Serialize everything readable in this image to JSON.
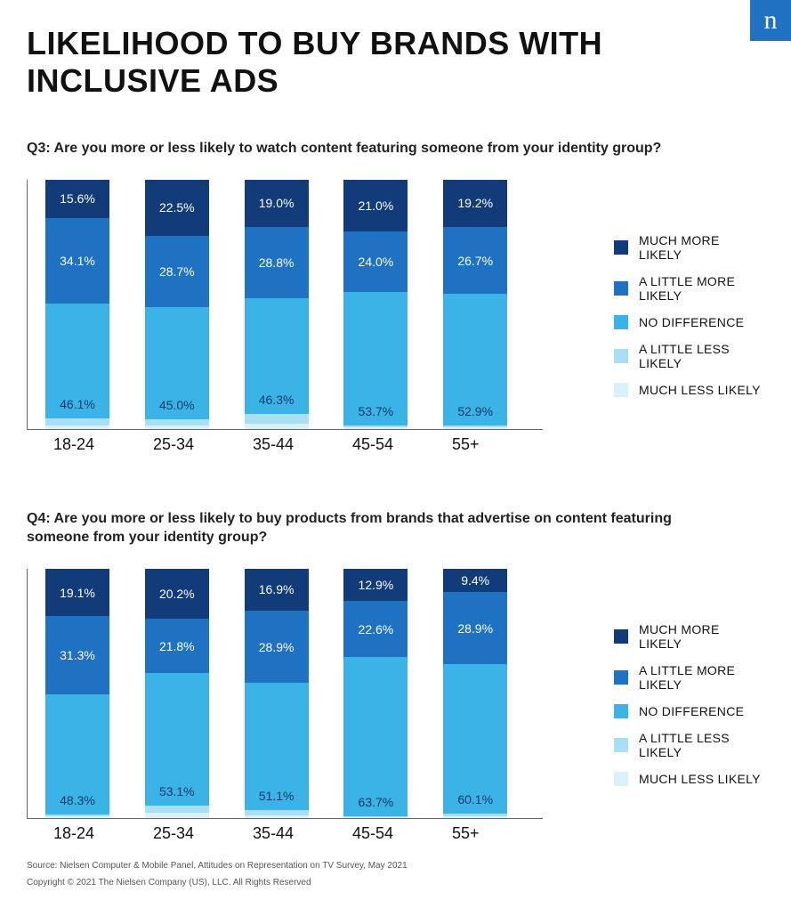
{
  "logo_glyph": "n",
  "title": "LIKELIHOOD TO BUY BRANDS WITH INCLUSIVE ADS",
  "palette": {
    "much_more": "#123b7a",
    "little_more": "#1f71c2",
    "no_diff": "#3bb3e6",
    "little_less": "#a8dff5",
    "much_less": "#d9f1fb",
    "text_on_dark": "#ffffff",
    "text_on_light": "#0f3a6b"
  },
  "legend_items": [
    {
      "key": "much_more",
      "label": "MUCH MORE LIKELY"
    },
    {
      "key": "little_more",
      "label": "A LITTLE MORE LIKELY"
    },
    {
      "key": "no_diff",
      "label": "NO DIFFERENCE"
    },
    {
      "key": "little_less",
      "label": "A LITTLE LESS LIKELY"
    },
    {
      "key": "much_less",
      "label": "MUCH LESS LIKELY"
    }
  ],
  "charts": [
    {
      "question": "Q3: Are you more or less likely to watch content featuring someone from your identity group?",
      "type": "stacked-bar-100",
      "categories": [
        "18-24",
        "25-34",
        "35-44",
        "45-54",
        "55+"
      ],
      "bars": [
        {
          "segments": [
            {
              "key": "much_more",
              "value": 15.6,
              "show": true
            },
            {
              "key": "little_more",
              "value": 34.1,
              "show": true
            },
            {
              "key": "no_diff",
              "value": 46.1,
              "show": true
            },
            {
              "key": "little_less",
              "value": 2.8,
              "show": false
            },
            {
              "key": "much_less",
              "value": 1.4,
              "show": false
            }
          ]
        },
        {
          "segments": [
            {
              "key": "much_more",
              "value": 22.5,
              "show": true
            },
            {
              "key": "little_more",
              "value": 28.7,
              "show": true
            },
            {
              "key": "no_diff",
              "value": 45.0,
              "show": true
            },
            {
              "key": "little_less",
              "value": 2.4,
              "show": false
            },
            {
              "key": "much_less",
              "value": 1.4,
              "show": false
            }
          ]
        },
        {
          "segments": [
            {
              "key": "much_more",
              "value": 19.0,
              "show": true
            },
            {
              "key": "little_more",
              "value": 28.8,
              "show": true
            },
            {
              "key": "no_diff",
              "value": 46.3,
              "show": true
            },
            {
              "key": "little_less",
              "value": 4.0,
              "show": false
            },
            {
              "key": "much_less",
              "value": 1.9,
              "show": false
            }
          ]
        },
        {
          "segments": [
            {
              "key": "much_more",
              "value": 21.0,
              "show": true
            },
            {
              "key": "little_more",
              "value": 24.0,
              "show": true
            },
            {
              "key": "no_diff",
              "value": 53.7,
              "show": true
            },
            {
              "key": "little_less",
              "value": 0.8,
              "show": false
            },
            {
              "key": "much_less",
              "value": 0.5,
              "show": false
            }
          ]
        },
        {
          "segments": [
            {
              "key": "much_more",
              "value": 19.2,
              "show": true
            },
            {
              "key": "little_more",
              "value": 26.7,
              "show": true
            },
            {
              "key": "no_diff",
              "value": 52.9,
              "show": true
            },
            {
              "key": "little_less",
              "value": 0.7,
              "show": false
            },
            {
              "key": "much_less",
              "value": 0.5,
              "show": false
            }
          ]
        }
      ]
    },
    {
      "question": "Q4: Are you more or less likely to buy products from brands that advertise on content featuring someone from your identity group?",
      "type": "stacked-bar-100",
      "categories": [
        "18-24",
        "25-34",
        "35-44",
        "45-54",
        "55+"
      ],
      "bars": [
        {
          "segments": [
            {
              "key": "much_more",
              "value": 19.1,
              "show": true
            },
            {
              "key": "little_more",
              "value": 31.3,
              "show": true
            },
            {
              "key": "no_diff",
              "value": 48.3,
              "show": true
            },
            {
              "key": "little_less",
              "value": 0.8,
              "show": false
            },
            {
              "key": "much_less",
              "value": 0.5,
              "show": false
            }
          ]
        },
        {
          "segments": [
            {
              "key": "much_more",
              "value": 20.2,
              "show": true
            },
            {
              "key": "little_more",
              "value": 21.8,
              "show": true
            },
            {
              "key": "no_diff",
              "value": 53.1,
              "show": true
            },
            {
              "key": "little_less",
              "value": 3.0,
              "show": false
            },
            {
              "key": "much_less",
              "value": 1.9,
              "show": false
            }
          ]
        },
        {
          "segments": [
            {
              "key": "much_more",
              "value": 16.9,
              "show": true
            },
            {
              "key": "little_more",
              "value": 28.9,
              "show": true
            },
            {
              "key": "no_diff",
              "value": 51.1,
              "show": true
            },
            {
              "key": "little_less",
              "value": 2.0,
              "show": false
            },
            {
              "key": "much_less",
              "value": 1.1,
              "show": false
            }
          ]
        },
        {
          "segments": [
            {
              "key": "much_more",
              "value": 12.9,
              "show": true
            },
            {
              "key": "little_more",
              "value": 22.6,
              "show": true
            },
            {
              "key": "no_diff",
              "value": 63.7,
              "show": true
            },
            {
              "key": "little_less",
              "value": 0.5,
              "show": false
            },
            {
              "key": "much_less",
              "value": 0.3,
              "show": false
            }
          ]
        },
        {
          "segments": [
            {
              "key": "much_more",
              "value": 9.4,
              "show": true
            },
            {
              "key": "little_more",
              "value": 28.9,
              "show": true
            },
            {
              "key": "no_diff",
              "value": 60.1,
              "show": true
            },
            {
              "key": "little_less",
              "value": 1.0,
              "show": false
            },
            {
              "key": "much_less",
              "value": 0.6,
              "show": false
            }
          ]
        }
      ]
    }
  ],
  "footer_source": "Source: Nielsen Computer & Mobile Panel, Attitudes on Representation on TV Survey, May 2021",
  "footer_copyright": "Copyright © 2021 The Nielsen Company (US), LLC. All Rights Reserved"
}
